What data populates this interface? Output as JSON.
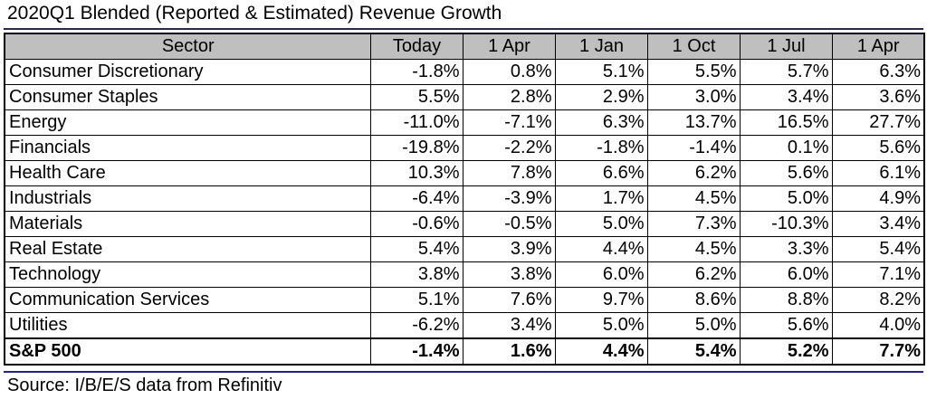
{
  "chart_data": {
    "type": "table",
    "title": "2020Q1 Blended (Reported & Estimated) Revenue Growth",
    "columns": [
      "Sector",
      "Today",
      "1 Apr",
      "1 Jan",
      "1 Oct",
      "1 Jul",
      "1 Apr"
    ],
    "rows": [
      {
        "sector": "Consumer Discretionary",
        "values": [
          "-1.8%",
          "0.8%",
          "5.1%",
          "5.5%",
          "5.7%",
          "6.3%"
        ]
      },
      {
        "sector": "Consumer Staples",
        "values": [
          "5.5%",
          "2.8%",
          "2.9%",
          "3.0%",
          "3.4%",
          "3.6%"
        ]
      },
      {
        "sector": "Energy",
        "values": [
          "-11.0%",
          "-7.1%",
          "6.3%",
          "13.7%",
          "16.5%",
          "27.7%"
        ]
      },
      {
        "sector": "Financials",
        "values": [
          "-19.8%",
          "-2.2%",
          "-1.8%",
          "-1.4%",
          "0.1%",
          "5.6%"
        ]
      },
      {
        "sector": "Health Care",
        "values": [
          "10.3%",
          "7.8%",
          "6.6%",
          "6.2%",
          "5.6%",
          "6.1%"
        ]
      },
      {
        "sector": "Industrials",
        "values": [
          "-6.4%",
          "-3.9%",
          "1.7%",
          "4.5%",
          "5.0%",
          "4.9%"
        ]
      },
      {
        "sector": "Materials",
        "values": [
          "-0.6%",
          "-0.5%",
          "5.0%",
          "7.3%",
          "-10.3%",
          "3.4%"
        ]
      },
      {
        "sector": "Real Estate",
        "values": [
          "5.4%",
          "3.9%",
          "4.4%",
          "4.5%",
          "3.3%",
          "5.4%"
        ]
      },
      {
        "sector": "Technology",
        "values": [
          "3.8%",
          "3.8%",
          "6.0%",
          "6.2%",
          "6.0%",
          "7.1%"
        ]
      },
      {
        "sector": "Communication Services",
        "values": [
          "5.1%",
          "7.6%",
          "9.7%",
          "8.6%",
          "8.8%",
          "8.2%"
        ]
      },
      {
        "sector": "Utilities",
        "values": [
          "-6.2%",
          "3.4%",
          "5.0%",
          "5.0%",
          "5.6%",
          "4.0%"
        ]
      }
    ],
    "total": {
      "sector": "S&P 500",
      "values": [
        "-1.4%",
        "1.6%",
        "4.4%",
        "5.4%",
        "5.2%",
        "7.7%"
      ]
    },
    "source": "Source: I/B/E/S data from Refinitiv",
    "header_fill": "#bfbfbf",
    "rule_color": "#1f1fa0"
  }
}
